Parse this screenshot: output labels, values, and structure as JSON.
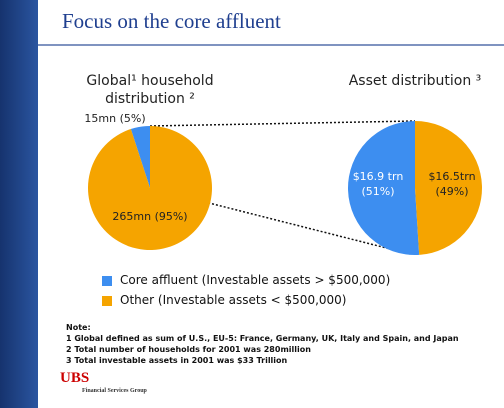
{
  "header": {
    "title": "Focus on the core affluent"
  },
  "chart_data": [
    {
      "type": "pie",
      "title": "Global¹ household distribution ²",
      "categories": [
        "Core affluent (Investable assets > $500,000)",
        "Other (Investable assets < $500,000)"
      ],
      "colors": [
        "#3d8ef0",
        "#f5a400"
      ],
      "values": [
        5,
        95
      ],
      "value_labels": [
        "15mn (5%)",
        "265mn (95%)"
      ]
    },
    {
      "type": "pie",
      "title": "Asset distribution ³",
      "colors": [
        "#3d8ef0",
        "#f5a400"
      ],
      "values": [
        51,
        49
      ],
      "value_labels": [
        "$16.9 trn (51%)",
        "$16.5trn (49%)"
      ]
    }
  ],
  "notes": {
    "heading": "Note:",
    "items": [
      "1  Global defined as sum of U.S., EU-5: France, Germany, UK, Italy and Spain, and Japan",
      "2  Total number of households for 2001 was 280million",
      "3  Total investable assets in 2001 was $33 Trillion"
    ]
  },
  "logo": {
    "name": "UBS",
    "subtitle": "Financial Services Group"
  }
}
